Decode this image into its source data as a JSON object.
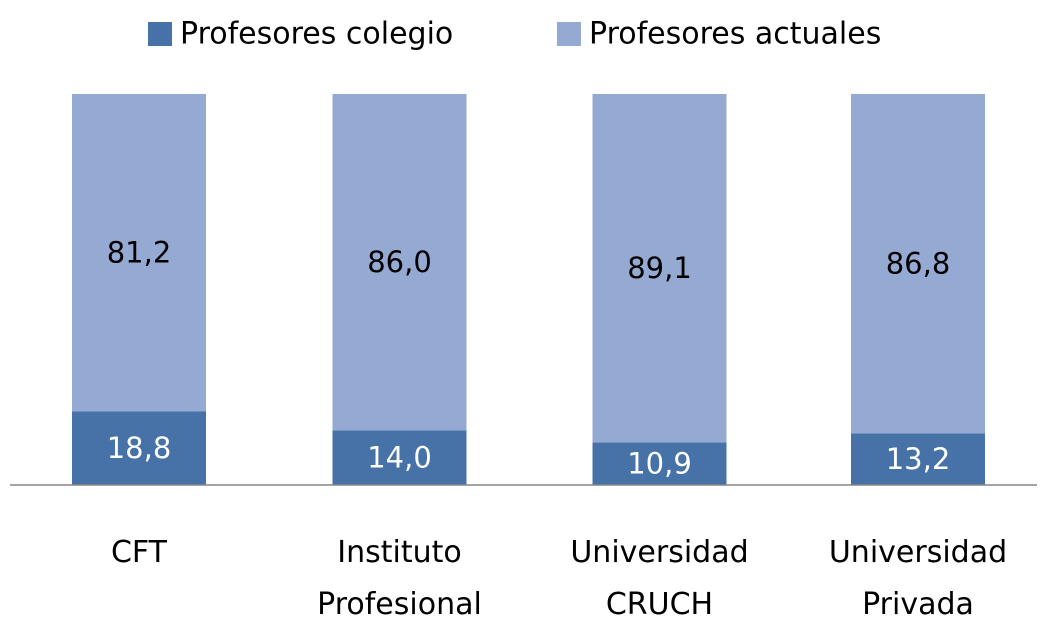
{
  "chart_data": {
    "type": "stacked_bar",
    "categories": [
      "CFT",
      "Instituto Profesional",
      "Universidad CRUCH",
      "Universidad Privada"
    ],
    "series": [
      {
        "name": "Profesores colegio",
        "color": "#4672a8",
        "values": [
          18.8,
          14.0,
          10.9,
          13.2
        ],
        "value_labels": [
          "18,8",
          "14,0",
          "10,9",
          "13,2"
        ],
        "label_color": "#ffffff"
      },
      {
        "name": "Profesores actuales",
        "color": "#95aad2",
        "values": [
          81.2,
          86.0,
          89.1,
          86.8
        ],
        "value_labels": [
          "81,2",
          "86,0",
          "89,1",
          "86,8"
        ],
        "label_color": "#000000"
      }
    ],
    "ylim": [
      0,
      100
    ],
    "legend": "top"
  }
}
